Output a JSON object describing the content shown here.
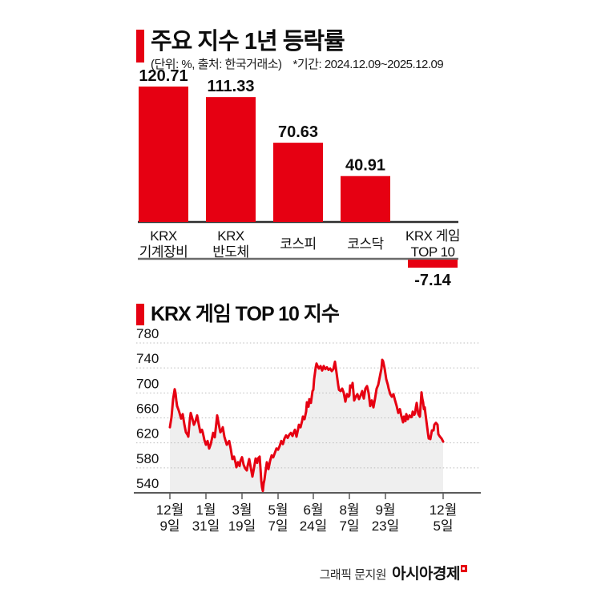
{
  "page": {
    "background": "#ffffff"
  },
  "accent": "#e60012",
  "header": {
    "title": "주요 지수 1년 등락률",
    "unit_note": "(단위: %, 출처: 한국거래소)",
    "period_note": "*기간: 2024.12.09~2025.12.09"
  },
  "section2": {
    "title": "KRX 게임 TOP 10 지수"
  },
  "footer": {
    "credit": "그래픽 문지원",
    "brand": "아시아경제"
  },
  "chart_data": [
    {
      "type": "bar",
      "title": "주요 지수 1년 등락률",
      "unit": "%",
      "source": "한국거래소",
      "period": "2024.12.09~2025.12.09",
      "categories": [
        "KRX 기계장비",
        "KRX 반도체",
        "코스피",
        "코스닥",
        "KRX 게임 TOP 10"
      ],
      "category_lines": [
        [
          "KRX",
          "기계장비"
        ],
        [
          "KRX",
          "반도체"
        ],
        [
          "코스피"
        ],
        [
          "코스닥"
        ],
        [
          "KRX 게임",
          "TOP 10"
        ]
      ],
      "values": [
        120.71,
        111.33,
        70.63,
        40.91,
        -7.14
      ],
      "value_labels": [
        "120.71",
        "111.33",
        "70.63",
        "40.91",
        "-7.14"
      ],
      "bar_color": "#e60012",
      "axis_color_top": "#2e2e2e",
      "axis_color_bottom": "#6b6b6b",
      "ylim": [
        -10,
        135
      ]
    },
    {
      "type": "area-line",
      "title": "KRX 게임 TOP 10 지수",
      "ylim": [
        540,
        780
      ],
      "yticks": [
        780,
        740,
        700,
        660,
        620,
        580,
        540
      ],
      "grid": "dotted",
      "legend": "none",
      "line_color": "#e60012",
      "fill_color": "#efefef",
      "grid_color": "#bcbcbc",
      "axis_color": "#5a5a5a",
      "xticks": [
        {
          "pos": 0,
          "lines": [
            "12월",
            "9일"
          ]
        },
        {
          "pos": 45,
          "lines": [
            "1월",
            "31일"
          ]
        },
        {
          "pos": 90,
          "lines": [
            "3월",
            "19일"
          ]
        },
        {
          "pos": 135,
          "lines": [
            "5월",
            "7일"
          ]
        },
        {
          "pos": 179,
          "lines": [
            "6월",
            "24일"
          ]
        },
        {
          "pos": 224,
          "lines": [
            "8월",
            "7일"
          ]
        },
        {
          "pos": 269,
          "lines": [
            "9월",
            "23일"
          ]
        },
        {
          "pos": 341,
          "lines": [
            "12월",
            "5일"
          ]
        }
      ],
      "points": [
        [
          0,
          645
        ],
        [
          2,
          661
        ],
        [
          4,
          690
        ],
        [
          6,
          706
        ],
        [
          7,
          700
        ],
        [
          8,
          688
        ],
        [
          9,
          679
        ],
        [
          11,
          672
        ],
        [
          12,
          668
        ],
        [
          14,
          659
        ],
        [
          16,
          666
        ],
        [
          18,
          650
        ],
        [
          20,
          637
        ],
        [
          22,
          633
        ],
        [
          23,
          630
        ],
        [
          24,
          645
        ],
        [
          25,
          658
        ],
        [
          26,
          668
        ],
        [
          28,
          659
        ],
        [
          30,
          649
        ],
        [
          32,
          655
        ],
        [
          34,
          664
        ],
        [
          36,
          650
        ],
        [
          38,
          637
        ],
        [
          40,
          641
        ],
        [
          41,
          637
        ],
        [
          43,
          625
        ],
        [
          45,
          617
        ],
        [
          47,
          623
        ],
        [
          49,
          611
        ],
        [
          51,
          618
        ],
        [
          53,
          630
        ],
        [
          54,
          636
        ],
        [
          56,
          629
        ],
        [
          58,
          652
        ],
        [
          59,
          664
        ],
        [
          61,
          650
        ],
        [
          63,
          637
        ],
        [
          65,
          641
        ],
        [
          66,
          645
        ],
        [
          68,
          630
        ],
        [
          71,
          617
        ],
        [
          73,
          621
        ],
        [
          74,
          623
        ],
        [
          76,
          610
        ],
        [
          78,
          594
        ],
        [
          80,
          598
        ],
        [
          82,
          588
        ],
        [
          83,
          581
        ],
        [
          85,
          589
        ],
        [
          87,
          583
        ],
        [
          88,
          591
        ],
        [
          90,
          597
        ],
        [
          92,
          585
        ],
        [
          94,
          579
        ],
        [
          96,
          576
        ],
        [
          97,
          583
        ],
        [
          99,
          594
        ],
        [
          101,
          580
        ],
        [
          103,
          566
        ],
        [
          105,
          580
        ],
        [
          107,
          595
        ],
        [
          109,
          588
        ],
        [
          110,
          595
        ],
        [
          112,
          598
        ],
        [
          113,
          580
        ],
        [
          114,
          560
        ],
        [
          115,
          549
        ],
        [
          116,
          543
        ],
        [
          117,
          555
        ],
        [
          118,
          561
        ],
        [
          119,
          571
        ],
        [
          121,
          589
        ],
        [
          123,
          578
        ],
        [
          125,
          591
        ],
        [
          127,
          600
        ],
        [
          129,
          597
        ],
        [
          131,
          604
        ],
        [
          133,
          611
        ],
        [
          135,
          609
        ],
        [
          137,
          615
        ],
        [
          139,
          623
        ],
        [
          141,
          618
        ],
        [
          143,
          627
        ],
        [
          145,
          632
        ],
        [
          147,
          628
        ],
        [
          149,
          633
        ],
        [
          151,
          636
        ],
        [
          153,
          631
        ],
        [
          155,
          638
        ],
        [
          156,
          641
        ],
        [
          158,
          630
        ],
        [
          160,
          642
        ],
        [
          161,
          649
        ],
        [
          163,
          645
        ],
        [
          165,
          655
        ],
        [
          166,
          662
        ],
        [
          168,
          658
        ],
        [
          170,
          670
        ],
        [
          171,
          685
        ],
        [
          173,
          678
        ],
        [
          174,
          690
        ],
        [
          176,
          684
        ],
        [
          178,
          703
        ],
        [
          179,
          705
        ],
        [
          180,
          722
        ],
        [
          182,
          741
        ],
        [
          183,
          747
        ],
        [
          184,
          744
        ],
        [
          186,
          739
        ],
        [
          188,
          743
        ],
        [
          190,
          736
        ],
        [
          192,
          743
        ],
        [
          194,
          738
        ],
        [
          196,
          741
        ],
        [
          198,
          737
        ],
        [
          200,
          739
        ],
        [
          202,
          735
        ],
        [
          204,
          738
        ],
        [
          206,
          750
        ],
        [
          208,
          732
        ],
        [
          210,
          713
        ],
        [
          211,
          705
        ],
        [
          213,
          703
        ],
        [
          215,
          707
        ],
        [
          217,
          700
        ],
        [
          219,
          686
        ],
        [
          221,
          698
        ],
        [
          223,
          694
        ],
        [
          224,
          696
        ],
        [
          225,
          712
        ],
        [
          227,
          709
        ],
        [
          228,
          716
        ],
        [
          230,
          688
        ],
        [
          232,
          694
        ],
        [
          234,
          698
        ],
        [
          236,
          690
        ],
        [
          238,
          696
        ],
        [
          240,
          703
        ],
        [
          242,
          691
        ],
        [
          244,
          707
        ],
        [
          246,
          711
        ],
        [
          248,
          700
        ],
        [
          250,
          679
        ],
        [
          252,
          688
        ],
        [
          254,
          677
        ],
        [
          256,
          691
        ],
        [
          258,
          707
        ],
        [
          260,
          713
        ],
        [
          262,
          726
        ],
        [
          264,
          739
        ],
        [
          265,
          753
        ],
        [
          266,
          751
        ],
        [
          268,
          739
        ],
        [
          270,
          722
        ],
        [
          272,
          713
        ],
        [
          273,
          707
        ],
        [
          275,
          698
        ],
        [
          277,
          694
        ],
        [
          279,
          698
        ],
        [
          281,
          688
        ],
        [
          283,
          679
        ],
        [
          285,
          668
        ],
        [
          287,
          674
        ],
        [
          289,
          662
        ],
        [
          291,
          653
        ],
        [
          292,
          662
        ],
        [
          294,
          655
        ],
        [
          295,
          666
        ],
        [
          297,
          658
        ],
        [
          299,
          664
        ],
        [
          301,
          661
        ],
        [
          302,
          662
        ],
        [
          303,
          670
        ],
        [
          305,
          665
        ],
        [
          306,
          668
        ],
        [
          307,
          677
        ],
        [
          308,
          684
        ],
        [
          310,
          666
        ],
        [
          312,
          662
        ],
        [
          314,
          701
        ],
        [
          315,
          691
        ],
        [
          316,
          685
        ],
        [
          317,
          674
        ],
        [
          318,
          677
        ],
        [
          319,
          666
        ],
        [
          321,
          646
        ],
        [
          322,
          636
        ],
        [
          323,
          627
        ],
        [
          324,
          630
        ],
        [
          325,
          626
        ],
        [
          327,
          640
        ],
        [
          329,
          640
        ],
        [
          330,
          649
        ],
        [
          332,
          652
        ],
        [
          334,
          649
        ],
        [
          335,
          634
        ],
        [
          337,
          630
        ],
        [
          339,
          627
        ],
        [
          341,
          622
        ]
      ]
    }
  ]
}
